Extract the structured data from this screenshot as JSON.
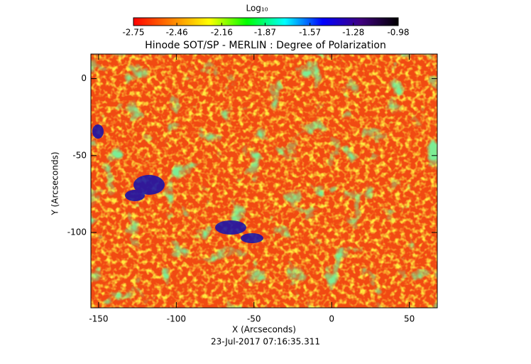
{
  "chart_data": {
    "type": "heatmap",
    "title": "Hinode SOT/SP - MERLIN : Degree of Polarization",
    "xlabel": "X (Arcseconds)",
    "ylabel": "Y (Arcseconds)",
    "footer": "23-Jul-2017 07:16:35.311",
    "colorbar_label": "Log₁₀",
    "colorbar_ticks": [
      -2.75,
      -2.46,
      -2.16,
      -1.87,
      -1.57,
      -1.28,
      -0.98
    ],
    "colorbar_colors": [
      "#ff0000",
      "#ff8000",
      "#ffff00",
      "#00ff00",
      "#00ffff",
      "#0000ff",
      "#400080",
      "#000000"
    ],
    "xlim": [
      -155,
      68
    ],
    "xticks": [
      -150,
      -100,
      -50,
      0,
      50
    ],
    "ylim": [
      -149,
      16
    ],
    "yticks": [
      -100,
      -50,
      0
    ]
  }
}
